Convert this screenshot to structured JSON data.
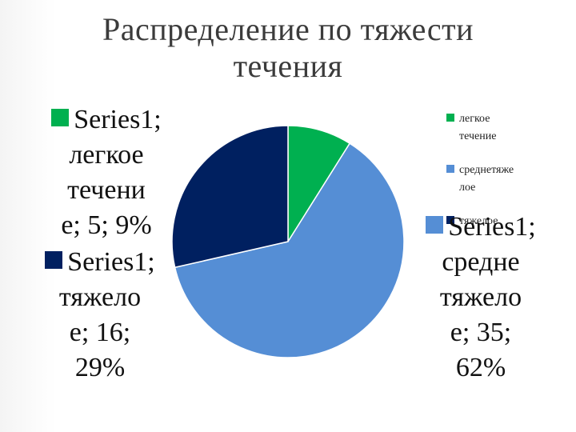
{
  "slide": {
    "title_line1": "Распределение по тяжести",
    "title_line2": "течения"
  },
  "chart_data": {
    "type": "pie",
    "title": "Распределение по тяжести течения",
    "categories": [
      "легкое течение",
      "среднетяжелое",
      "тяжелое"
    ],
    "series": [
      {
        "name": "Series1",
        "values": [
          5,
          35,
          16
        ],
        "percents": [
          "9%",
          "62%",
          "29%"
        ]
      }
    ],
    "colors": [
      "#00b050",
      "#558ed5",
      "#002060"
    ],
    "legend_placement": "right",
    "data_labels": [
      [
        "Series1;",
        "легкое",
        "течени",
        "е; 5; 9%"
      ],
      [
        "Series1;",
        "средне",
        "тяжело",
        "е; 35;",
        "62%"
      ],
      [
        "Series1;",
        "тяжело",
        "е; 16;",
        "29%"
      ]
    ],
    "legend": [
      [
        "легкое",
        "течение"
      ],
      [
        "среднетяже",
        "лое"
      ],
      [
        "тяжелое"
      ]
    ]
  }
}
